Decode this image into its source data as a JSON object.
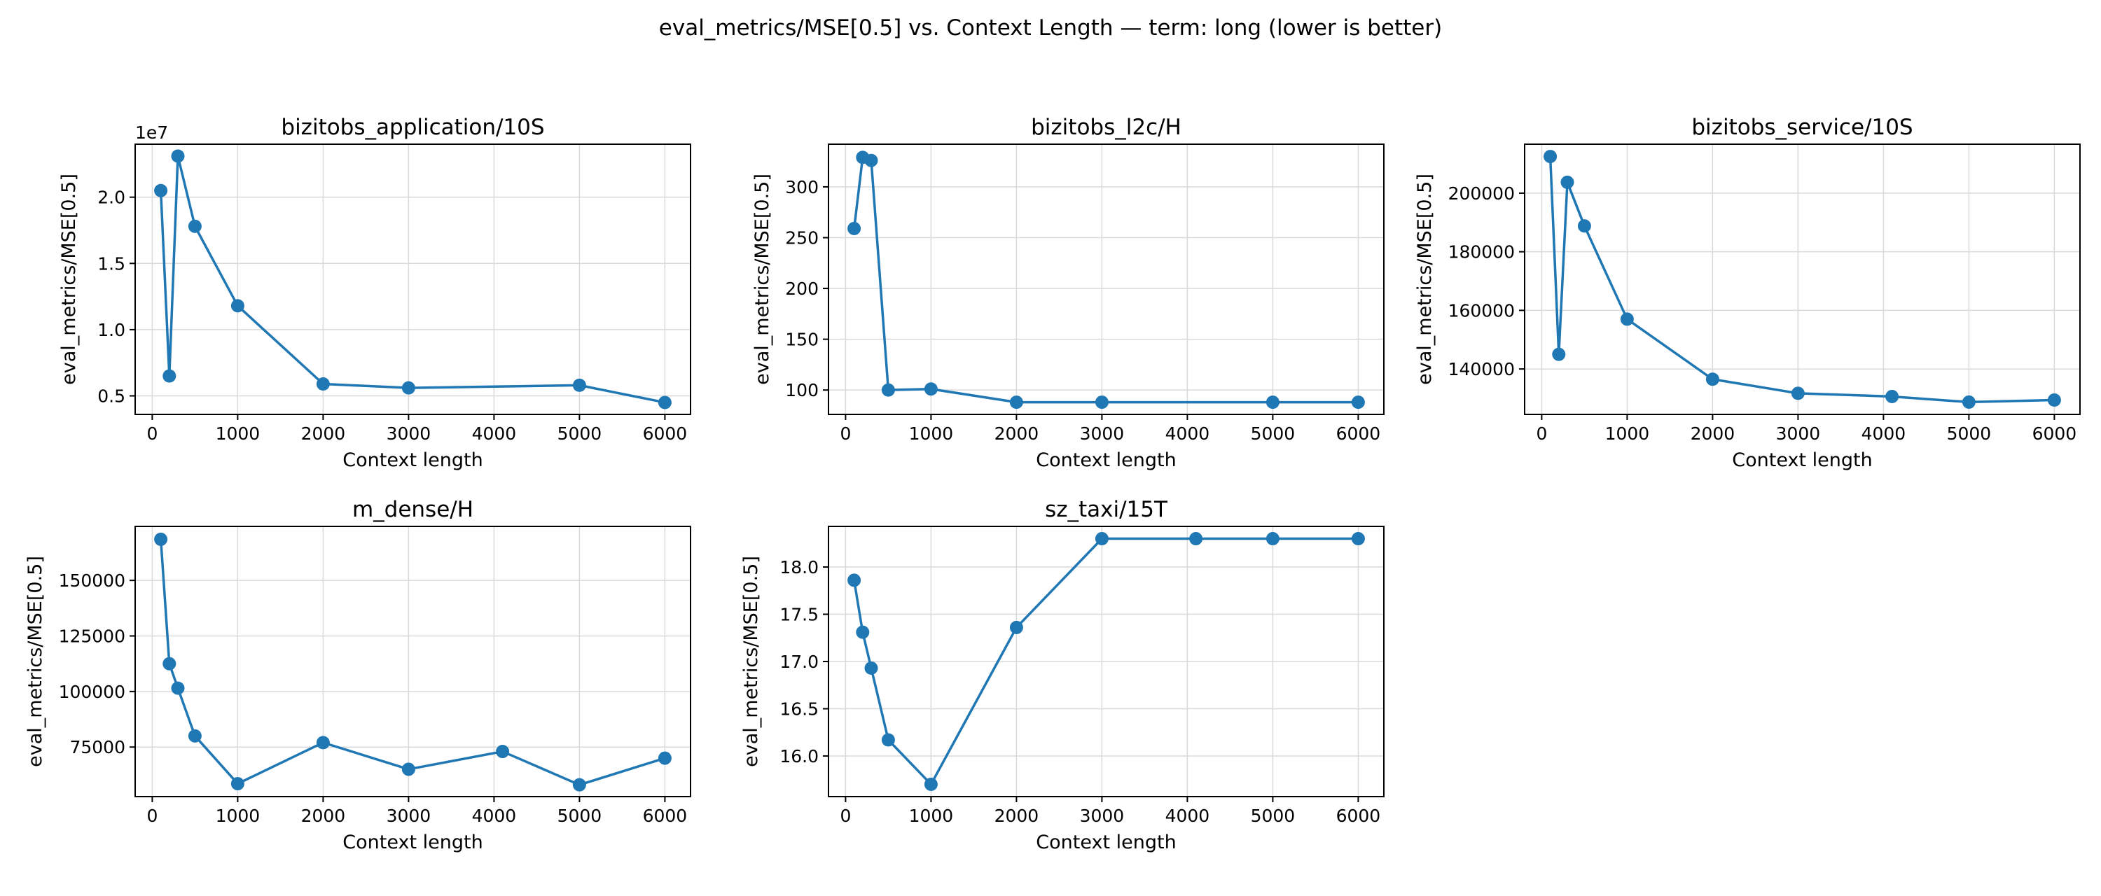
{
  "figure_title": "eval_metrics/MSE[0.5] vs. Context Length — term: long (lower is better)",
  "colors": {
    "series": "#1f77b4",
    "grid": "#d9d9d9"
  },
  "chart_data": [
    {
      "type": "line",
      "title": "bizitobs_application/10S",
      "xlabel": "Context length",
      "ylabel": "eval_metrics/MSE[0.5]",
      "x": [
        100,
        200,
        300,
        500,
        1000,
        2000,
        3000,
        5000,
        6000
      ],
      "y": [
        20500000,
        6500000,
        23100000,
        17800000,
        11800000,
        5900000,
        5600000,
        5800000,
        4500000
      ],
      "xlim": [
        -200,
        6300
      ],
      "ylim": [
        3600000,
        24000000
      ],
      "xticks": [
        0,
        1000,
        2000,
        3000,
        4000,
        5000,
        6000
      ],
      "xtick_labels": [
        "0",
        "1000",
        "2000",
        "3000",
        "4000",
        "5000",
        "6000"
      ],
      "yticks": [
        5000000,
        10000000,
        15000000,
        20000000
      ],
      "ytick_labels": [
        "0.5",
        "1.0",
        "1.5",
        "2.0"
      ],
      "y_offset_label": "1e7",
      "grid": true
    },
    {
      "type": "line",
      "title": "bizitobs_l2c/H",
      "xlabel": "Context length",
      "ylabel": "eval_metrics/MSE[0.5]",
      "x": [
        100,
        200,
        300,
        500,
        1000,
        2000,
        3000,
        5000,
        6000
      ],
      "y": [
        259,
        329,
        326,
        100,
        101,
        88,
        88,
        88,
        88
      ],
      "xlim": [
        -200,
        6300
      ],
      "ylim": [
        76,
        342
      ],
      "xticks": [
        0,
        1000,
        2000,
        3000,
        4000,
        5000,
        6000
      ],
      "xtick_labels": [
        "0",
        "1000",
        "2000",
        "3000",
        "4000",
        "5000",
        "6000"
      ],
      "yticks": [
        100,
        150,
        200,
        250,
        300
      ],
      "ytick_labels": [
        "100",
        "150",
        "200",
        "250",
        "300"
      ],
      "grid": true
    },
    {
      "type": "line",
      "title": "bizitobs_service/10S",
      "xlabel": "Context length",
      "ylabel": "eval_metrics/MSE[0.5]",
      "x": [
        100,
        200,
        300,
        500,
        1000,
        2000,
        3000,
        4100,
        5000,
        6000
      ],
      "y": [
        212500,
        145000,
        203700,
        188800,
        157000,
        136500,
        131700,
        130600,
        128700,
        129400
      ],
      "xlim": [
        -200,
        6300
      ],
      "ylim": [
        124500,
        216700
      ],
      "xticks": [
        0,
        1000,
        2000,
        3000,
        4000,
        5000,
        6000
      ],
      "xtick_labels": [
        "0",
        "1000",
        "2000",
        "3000",
        "4000",
        "5000",
        "6000"
      ],
      "yticks": [
        140000,
        160000,
        180000,
        200000
      ],
      "ytick_labels": [
        "140000",
        "160000",
        "180000",
        "200000"
      ],
      "grid": true
    },
    {
      "type": "line",
      "title": "m_dense/H",
      "xlabel": "Context length",
      "ylabel": "eval_metrics/MSE[0.5]",
      "x": [
        100,
        200,
        300,
        500,
        1000,
        2000,
        3000,
        4100,
        5000,
        6000
      ],
      "y": [
        168500,
        112500,
        101500,
        80000,
        58500,
        77000,
        65000,
        73000,
        58000,
        70000
      ],
      "xlim": [
        -200,
        6300
      ],
      "ylim": [
        52700,
        174300
      ],
      "xticks": [
        0,
        1000,
        2000,
        3000,
        4000,
        5000,
        6000
      ],
      "xtick_labels": [
        "0",
        "1000",
        "2000",
        "3000",
        "4000",
        "5000",
        "6000"
      ],
      "yticks": [
        75000,
        100000,
        125000,
        150000
      ],
      "ytick_labels": [
        "75000",
        "100000",
        "125000",
        "150000"
      ],
      "grid": true
    },
    {
      "type": "line",
      "title": "sz_taxi/15T",
      "xlabel": "Context length",
      "ylabel": "eval_metrics/MSE[0.5]",
      "x": [
        100,
        200,
        300,
        500,
        1000,
        2000,
        3000,
        4100,
        5000,
        6000
      ],
      "y": [
        17.86,
        17.31,
        16.93,
        16.17,
        15.7,
        17.36,
        18.3,
        18.3,
        18.3,
        18.3
      ],
      "xlim": [
        -200,
        6300
      ],
      "ylim": [
        15.57,
        18.43
      ],
      "xticks": [
        0,
        1000,
        2000,
        3000,
        4000,
        5000,
        6000
      ],
      "xtick_labels": [
        "0",
        "1000",
        "2000",
        "3000",
        "4000",
        "5000",
        "6000"
      ],
      "yticks": [
        16.0,
        16.5,
        17.0,
        17.5,
        18.0
      ],
      "ytick_labels": [
        "16.0",
        "16.5",
        "17.0",
        "17.5",
        "18.0"
      ],
      "grid": true
    }
  ]
}
